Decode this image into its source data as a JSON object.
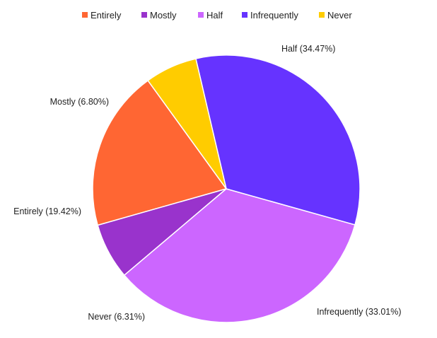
{
  "chart_data": {
    "type": "pie",
    "title": "",
    "legend_position": "top",
    "series": [
      {
        "name": "Entirely",
        "value": 19.42,
        "label": "Entirely (19.42%)",
        "color": "#FF6633"
      },
      {
        "name": "Mostly",
        "value": 6.8,
        "label": "Mostly (6.80%)",
        "color": "#9933CC"
      },
      {
        "name": "Half",
        "value": 34.47,
        "label": "Half (34.47%)",
        "color": "#CC66FF"
      },
      {
        "name": "Infrequently",
        "value": 33.01,
        "label": "Infrequently (33.01%)",
        "color": "#6633FF"
      },
      {
        "name": "Never",
        "value": 6.31,
        "label": "Never (6.31%)",
        "color": "#FFCC00"
      }
    ]
  }
}
